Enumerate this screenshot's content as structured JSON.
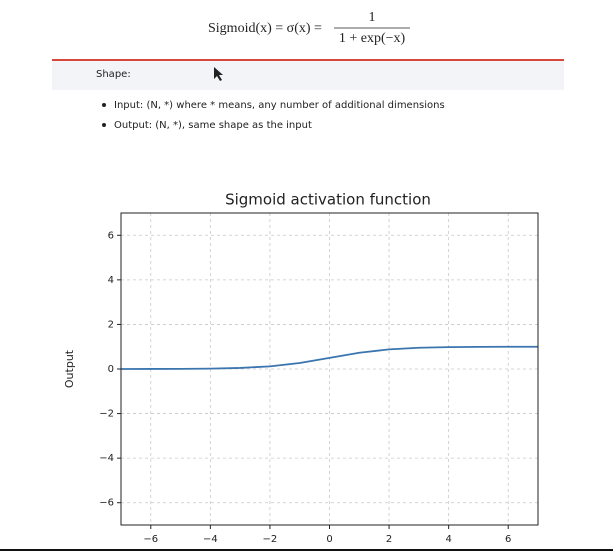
{
  "formula": {
    "lhs": "Sigmoid(x) = σ(x) =",
    "numerator": "1",
    "denominator": "1 + exp(−x)"
  },
  "shape": {
    "heading": "Shape:",
    "items": [
      "Input: (N, *) where * means, any number of additional dimensions",
      "Output: (N, *), same shape as the input"
    ]
  },
  "chart_data": {
    "type": "line",
    "title": "Sigmoid activation function",
    "ylabel": "Output",
    "x": [
      -7,
      -6,
      -5,
      -4,
      -3,
      -2,
      -1,
      0,
      1,
      2,
      3,
      4,
      5,
      6,
      7
    ],
    "values": [
      0.001,
      0.002,
      0.007,
      0.018,
      0.047,
      0.119,
      0.269,
      0.5,
      0.731,
      0.881,
      0.953,
      0.982,
      0.993,
      0.998,
      0.999
    ],
    "color": "#3b75af",
    "xlim": [
      -7,
      7
    ],
    "ylim": [
      -7,
      7
    ],
    "xticks": [
      {
        "value": -6,
        "label": "−6"
      },
      {
        "value": -4,
        "label": "−4"
      },
      {
        "value": -2,
        "label": "−2"
      },
      0,
      2,
      4,
      6
    ],
    "yticks": [
      {
        "value": -6,
        "label": "−6"
      },
      {
        "value": -4,
        "label": "−4"
      },
      {
        "value": -2,
        "label": "−2"
      },
      0,
      2,
      4,
      6
    ],
    "grid": true
  }
}
